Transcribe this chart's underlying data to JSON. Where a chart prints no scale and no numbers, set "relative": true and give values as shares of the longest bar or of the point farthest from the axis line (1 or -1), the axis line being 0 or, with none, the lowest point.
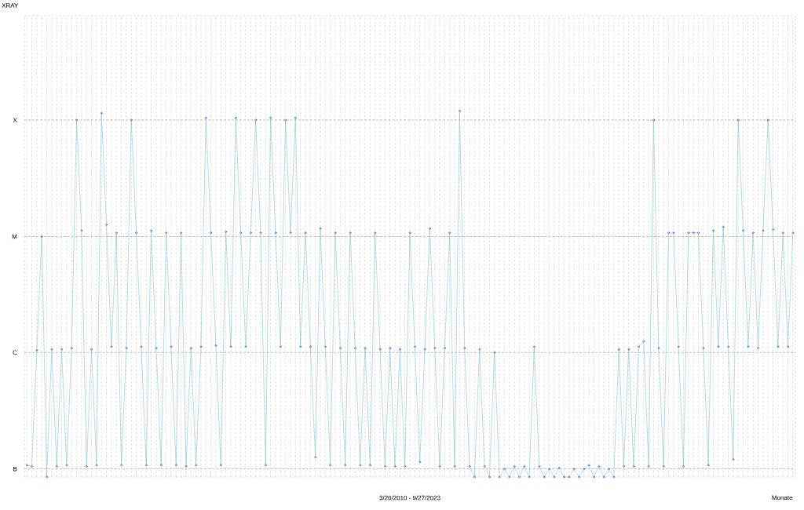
{
  "chart_data": {
    "type": "line",
    "xlabel": "Monate",
    "annotations": [
      "XRAY",
      "3/26/2010 - 9/27/2023"
    ],
    "relative": true,
    "categories": [
      null,
      null,
      null,
      null,
      null,
      null,
      null,
      null,
      null,
      null,
      null,
      null,
      null,
      null,
      null,
      null,
      null,
      null,
      null,
      null,
      null,
      null,
      null,
      null,
      null,
      null,
      null,
      null,
      null,
      null,
      null,
      null,
      null,
      null,
      null,
      null,
      null,
      null,
      null,
      null,
      null,
      null,
      null,
      null,
      null,
      null,
      null,
      null,
      null,
      null,
      null,
      null,
      null,
      null,
      null,
      null,
      null,
      null,
      null,
      null,
      null,
      null,
      null,
      null,
      null,
      null,
      null,
      null,
      null,
      null,
      null,
      null,
      null,
      null,
      null,
      null,
      null,
      null,
      null,
      null,
      null,
      null,
      null,
      null,
      null,
      null,
      null,
      null,
      null,
      null,
      null,
      null,
      null,
      null,
      null,
      null,
      null,
      null,
      null,
      null,
      null,
      null,
      null,
      null,
      null,
      null,
      null,
      null,
      null,
      null,
      null,
      null,
      null,
      null,
      null,
      null,
      null,
      null,
      null,
      null,
      null,
      null,
      null,
      null,
      null,
      null,
      null,
      null,
      null,
      null,
      null,
      null,
      null,
      null,
      null,
      null,
      null,
      null,
      null,
      null,
      null,
      null,
      null,
      null,
      null,
      null,
      null,
      null,
      null,
      null,
      null,
      null,
      null,
      null,
      null
    ],
    "ref_lines": [
      {
        "axis": "y",
        "value": 0.022,
        "label": "B",
        "color": "#7f7f7f",
        "line_style": "dashed"
      },
      {
        "axis": "y",
        "value": 0.34,
        "label": "C",
        "color": "#7f7f7f",
        "line_style": "dashed"
      },
      {
        "axis": "y",
        "value": 0.657,
        "label": "M",
        "color": "#7f7f7f",
        "line_style": "dashed"
      },
      {
        "axis": "y",
        "value": 0.975,
        "label": "X",
        "color": "#7f7f7f",
        "line_style": "dashed"
      }
    ],
    "grid": "x",
    "marker": "circle",
    "line_style": "solid",
    "series": [
      {
        "color": "#8cc4d4",
        "values": [
          0.032,
          0.029,
          0.346,
          0.657,
          0,
          0.349,
          0.029,
          0.349,
          0.032,
          0.352,
          0.975,
          0.673,
          0.029,
          0.349,
          0.032,
          0.994,
          0.689,
          0.356,
          0.667,
          0.032,
          0.352,
          0.975,
          0.667,
          0.356,
          0.032,
          0.673,
          0.352,
          0.032,
          0.667,
          0.356,
          0.032,
          0.667,
          0.029,
          0.352,
          0.032,
          0.356,
          0.981,
          0.667,
          0.359,
          0.032,
          0.67,
          0.356,
          0.981,
          0.667,
          0.356,
          0.667,
          0.975,
          0.667,
          0.032,
          0.981,
          0.667,
          0.356,
          0.975,
          0.667,
          0.981,
          0.356,
          0.667,
          0.356,
          0.054,
          0.679,
          0.356,
          0.032,
          0.667,
          0.352,
          0.032,
          0.667,
          0.352,
          0.032,
          0.352,
          0.032,
          0.667,
          0.349,
          0.029,
          0.352,
          0.029,
          0.349,
          0.029,
          0.667,
          0.356,
          0.041,
          0.349,
          0.679,
          0.352,
          0.029,
          0.352,
          0.667,
          0.029,
          1,
          0.352,
          0.029,
          0,
          0.349,
          0.029,
          0,
          0.34,
          0,
          0.022,
          0,
          0.029,
          0,
          0.029,
          0,
          0.356,
          0.029,
          0,
          0.022,
          0,
          0.025,
          0,
          0,
          0.022,
          0,
          0.022,
          0.032,
          0,
          0.029,
          0,
          0.022,
          0,
          0.349,
          0.029,
          0.349,
          0.029,
          0.356,
          0.371,
          0.029,
          0.975,
          0.352,
          0.029,
          0.667,
          0.667,
          0.356,
          0.029,
          0.667,
          0.667,
          0.667,
          0.352,
          0.032,
          0.673,
          0.356,
          0.683,
          0.356,
          0.048,
          0.975,
          0.673,
          0.356,
          0.667,
          0.352,
          0.673,
          0.975,
          0.676,
          0.356,
          0.667,
          0.356,
          0.667
        ]
      }
    ]
  }
}
